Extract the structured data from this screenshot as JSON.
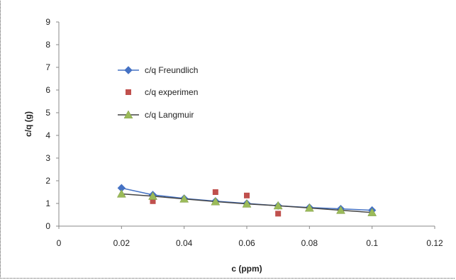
{
  "chart_data": {
    "type": "scatter",
    "title": "",
    "xlabel": "c (ppm)",
    "ylabel": "c/q (g)",
    "xlim": [
      0,
      0.12
    ],
    "ylim": [
      0,
      9
    ],
    "x_ticks": [
      "0",
      "0.02",
      "0.04",
      "0.06",
      "0.08",
      "0.1",
      "0.12"
    ],
    "y_ticks": [
      "0",
      "1",
      "2",
      "3",
      "4",
      "5",
      "6",
      "7",
      "8",
      "9"
    ],
    "x_tick_values": [
      0,
      0.02,
      0.04,
      0.06,
      0.08,
      0.1,
      0.12
    ],
    "y_tick_values": [
      0,
      1,
      2,
      3,
      4,
      5,
      6,
      7,
      8,
      9
    ],
    "grid": false,
    "legend_placement": "upper-left",
    "series": [
      {
        "name": "c/q Freundlich",
        "marker": "diamond",
        "line": true,
        "color": "#4572C4",
        "x": [
          0.02,
          0.03,
          0.04,
          0.05,
          0.06,
          0.07,
          0.08,
          0.09,
          0.1
        ],
        "y": [
          1.68,
          1.38,
          1.22,
          1.1,
          1.0,
          0.9,
          0.82,
          0.76,
          0.7
        ]
      },
      {
        "name": "c/q experimen",
        "marker": "square",
        "line": false,
        "color": "#C0504D",
        "x": [
          0.03,
          0.05,
          0.06,
          0.07
        ],
        "y": [
          1.1,
          1.5,
          1.35,
          0.55
        ]
      },
      {
        "name": "c/q Langmuir",
        "marker": "triangle",
        "line": true,
        "color": "#9BBB59",
        "x": [
          0.02,
          0.03,
          0.04,
          0.05,
          0.06,
          0.07,
          0.08,
          0.09,
          0.1
        ],
        "y": [
          1.42,
          1.32,
          1.2,
          1.08,
          0.98,
          0.9,
          0.8,
          0.7,
          0.6
        ]
      }
    ]
  }
}
